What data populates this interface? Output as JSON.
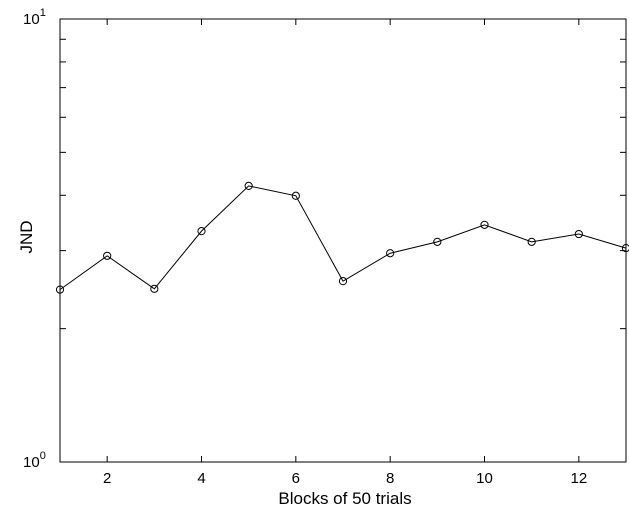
{
  "chart_data": {
    "type": "line",
    "xlabel": "Blocks of 50 trials",
    "ylabel": "JND",
    "xlim": [
      1,
      13
    ],
    "ylim": [
      1,
      10
    ],
    "yscale": "log",
    "grid": false,
    "marker": "open-circle",
    "line_color": "#000000",
    "x_ticks": [
      2,
      4,
      6,
      8,
      10,
      12
    ],
    "x_tick_labels": [
      "2",
      "4",
      "6",
      "8",
      "10",
      "12"
    ],
    "y_ticks": [
      1,
      10
    ],
    "y_tick_labels": [
      {
        "base": "10",
        "exp": "0"
      },
      {
        "base": "10",
        "exp": "1"
      }
    ],
    "series": [
      {
        "x": [
          1,
          2,
          3,
          4,
          5,
          6,
          7,
          8,
          9,
          10,
          11,
          12,
          13
        ],
        "y": [
          2.45,
          2.92,
          2.46,
          3.32,
          4.2,
          3.99,
          2.56,
          2.96,
          3.14,
          3.43,
          3.14,
          3.27,
          3.04
        ]
      }
    ]
  }
}
